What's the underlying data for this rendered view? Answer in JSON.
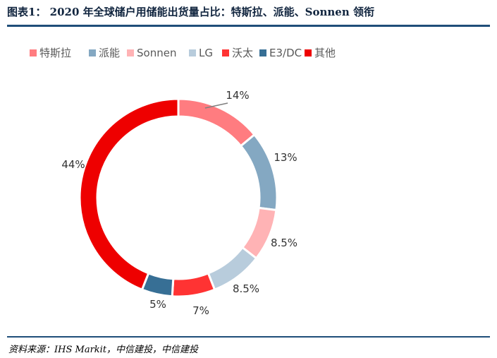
{
  "header": {
    "title": "图表1：  2020 年全球储户用储能出货量占比：特斯拉、派能、Sonnen 领衔"
  },
  "footer": {
    "source": "资料来源：IHS Markit，中信建投，中信建投"
  },
  "chart_data": {
    "type": "pie",
    "style": "donut",
    "title": "",
    "legend_position": "top-left",
    "categories": [
      "特斯拉",
      "派能",
      "Sonnen",
      "LG",
      "沃太",
      "E3/DC",
      "其他"
    ],
    "values": [
      14,
      13,
      8.5,
      8.5,
      7,
      5,
      44
    ],
    "data_labels": [
      "14%",
      "13%",
      "8.5%",
      "8.5%",
      "7%",
      "5%",
      "44%"
    ],
    "colors": [
      "#ff7c80",
      "#84a8c2",
      "#ffb3b5",
      "#b8ccdc",
      "#ff3333",
      "#376f95",
      "#ee0000"
    ]
  }
}
